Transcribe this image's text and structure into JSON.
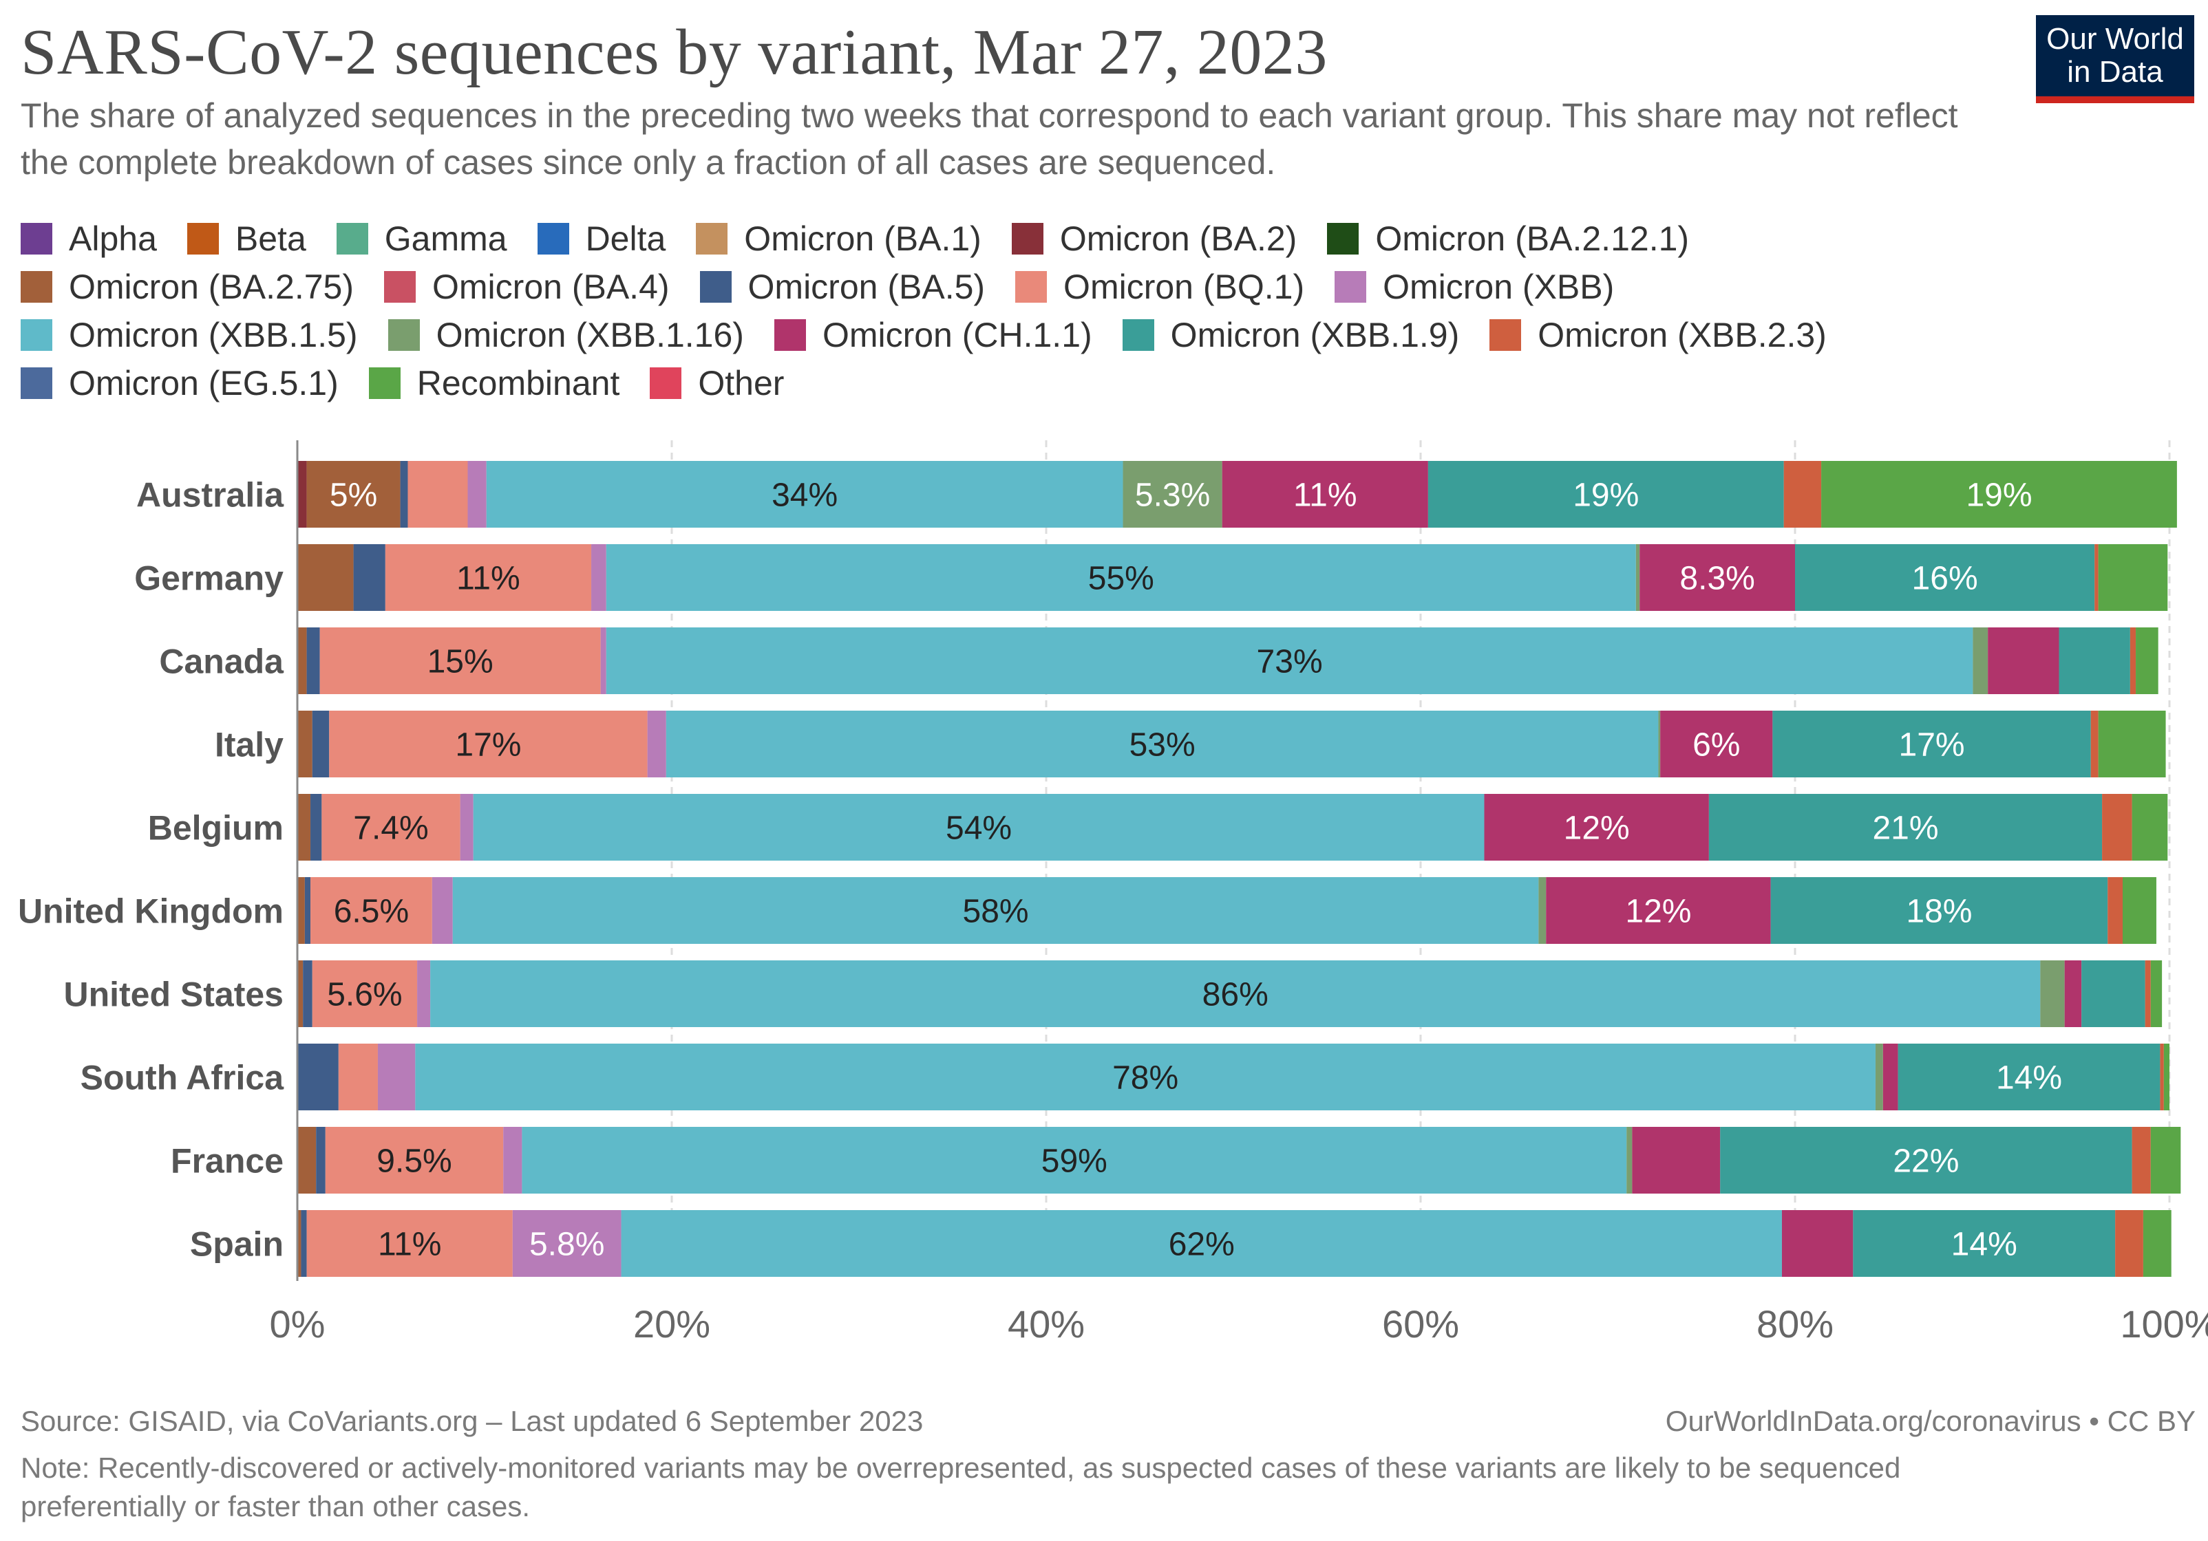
{
  "header": {
    "title": "SARS-CoV-2 sequences by variant, Mar 27, 2023",
    "subtitle": "The share of analyzed sequences in the preceding two weeks that correspond to each variant group. This share may not reflect the complete breakdown of cases since only a fraction of all cases are sequenced.",
    "logo_line1": "Our World",
    "logo_line2": "in Data"
  },
  "colors": {
    "logo_bg": "#002147",
    "logo_accent": "#ce261e"
  },
  "chart_data": {
    "type": "bar",
    "orientation": "horizontal",
    "stacked": true,
    "title": "SARS-CoV-2 sequences by variant, Mar 27, 2023",
    "xlabel": "",
    "ylabel": "",
    "xlim": [
      0,
      100
    ],
    "xticks": [
      0,
      20,
      40,
      60,
      80,
      100
    ],
    "xtick_labels": [
      "0%",
      "20%",
      "40%",
      "60%",
      "80%",
      "100%"
    ],
    "grid": true,
    "legend_position": "top",
    "categories": [
      "Australia",
      "Germany",
      "Canada",
      "Italy",
      "Belgium",
      "United Kingdom",
      "United States",
      "South Africa",
      "France",
      "Spain"
    ],
    "series": [
      {
        "name": "Alpha",
        "color": "#6d3e91",
        "values": [
          0,
          0,
          0,
          0,
          0,
          0,
          0,
          0,
          0,
          0
        ]
      },
      {
        "name": "Beta",
        "color": "#c05917",
        "values": [
          0,
          0,
          0,
          0,
          0,
          0,
          0,
          0,
          0,
          0
        ]
      },
      {
        "name": "Gamma",
        "color": "#58ac8c",
        "values": [
          0,
          0,
          0,
          0,
          0,
          0,
          0,
          0,
          0,
          0
        ]
      },
      {
        "name": "Delta",
        "color": "#286bbb",
        "values": [
          0,
          0,
          0,
          0,
          0,
          0,
          0,
          0,
          0,
          0
        ]
      },
      {
        "name": "Omicron (BA.1)",
        "color": "#c4915f",
        "values": [
          0,
          0,
          0,
          0,
          0,
          0,
          0,
          0,
          0,
          0
        ]
      },
      {
        "name": "Omicron (BA.2)",
        "color": "#883039",
        "values": [
          0.5,
          0,
          0,
          0,
          0,
          0,
          0,
          0,
          0,
          0
        ]
      },
      {
        "name": "Omicron (BA.2.12.1)",
        "color": "#1f4d17",
        "values": [
          0,
          0,
          0,
          0,
          0,
          0,
          0,
          0,
          0,
          0
        ]
      },
      {
        "name": "Omicron (BA.2.75)",
        "color": "#a2603a",
        "values": [
          5,
          3,
          0.5,
          0.8,
          0.7,
          0.4,
          0.3,
          0,
          1,
          0.2
        ]
      },
      {
        "name": "Omicron (BA.4)",
        "color": "#c95163",
        "values": [
          0,
          0,
          0,
          0,
          0,
          0,
          0,
          0,
          0,
          0
        ]
      },
      {
        "name": "Omicron (BA.5)",
        "color": "#3f5d8a",
        "values": [
          0.4,
          1.7,
          0.7,
          0.9,
          0.6,
          0.3,
          0.5,
          2.2,
          0.5,
          0.3
        ]
      },
      {
        "name": "Omicron (BQ.1)",
        "color": "#e9897a",
        "values": [
          3.2,
          11,
          15,
          17,
          7.4,
          6.5,
          5.6,
          2.1,
          9.5,
          11
        ]
      },
      {
        "name": "Omicron (XBB)",
        "color": "#b77cb8",
        "values": [
          1,
          0.8,
          0.3,
          1,
          0.7,
          1.1,
          0.7,
          2,
          1,
          5.8
        ]
      },
      {
        "name": "Omicron (XBB.1.5)",
        "color": "#5fbac9",
        "values": [
          34,
          55,
          73,
          53,
          54,
          58,
          86,
          78,
          59,
          62
        ]
      },
      {
        "name": "Omicron (XBB.1.16)",
        "color": "#7a9e6e",
        "values": [
          5.3,
          0.2,
          0.8,
          0.1,
          0,
          0.4,
          1.3,
          0.4,
          0.3,
          0
        ]
      },
      {
        "name": "Omicron (CH.1.1)",
        "color": "#b0346b",
        "values": [
          11,
          8.3,
          3.8,
          6,
          12,
          12,
          0.9,
          0.8,
          4.7,
          3.8
        ]
      },
      {
        "name": "Omicron (XBB.1.9)",
        "color": "#3a9e98",
        "values": [
          19,
          16,
          3.8,
          17,
          21,
          18,
          3.4,
          14,
          22,
          14
        ]
      },
      {
        "name": "Omicron (XBB.2.3)",
        "color": "#cf5f3f",
        "values": [
          2,
          0.2,
          0.3,
          0.4,
          1.6,
          0.8,
          0.3,
          0.2,
          1,
          1.5
        ]
      },
      {
        "name": "Omicron (EG.5.1)",
        "color": "#4c6a9c",
        "values": [
          0,
          0,
          0,
          0,
          0,
          0,
          0,
          0,
          0,
          0
        ]
      },
      {
        "name": "Recombinant",
        "color": "#5aa647",
        "values": [
          19,
          3.7,
          1.2,
          3.6,
          1.9,
          1.8,
          0.6,
          0.3,
          1.6,
          1.5
        ]
      },
      {
        "name": "Other",
        "color": "#e0445c",
        "values": [
          0,
          0,
          0,
          0,
          0,
          0,
          0,
          0,
          0,
          0
        ]
      }
    ],
    "data_labels": [
      {
        "category": "Australia",
        "series": "Omicron (BA.2.75)",
        "text": "5%"
      },
      {
        "category": "Australia",
        "series": "Omicron (XBB.1.5)",
        "text": "34%"
      },
      {
        "category": "Australia",
        "series": "Omicron (XBB.1.16)",
        "text": "5.3%"
      },
      {
        "category": "Australia",
        "series": "Omicron (CH.1.1)",
        "text": "11%"
      },
      {
        "category": "Australia",
        "series": "Omicron (XBB.1.9)",
        "text": "19%"
      },
      {
        "category": "Australia",
        "series": "Recombinant",
        "text": "19%"
      },
      {
        "category": "Germany",
        "series": "Omicron (BQ.1)",
        "text": "11%"
      },
      {
        "category": "Germany",
        "series": "Omicron (XBB.1.5)",
        "text": "55%"
      },
      {
        "category": "Germany",
        "series": "Omicron (CH.1.1)",
        "text": "8.3%"
      },
      {
        "category": "Germany",
        "series": "Omicron (XBB.1.9)",
        "text": "16%"
      },
      {
        "category": "Canada",
        "series": "Omicron (BQ.1)",
        "text": "15%"
      },
      {
        "category": "Canada",
        "series": "Omicron (XBB.1.5)",
        "text": "73%"
      },
      {
        "category": "Italy",
        "series": "Omicron (BQ.1)",
        "text": "17%"
      },
      {
        "category": "Italy",
        "series": "Omicron (XBB.1.5)",
        "text": "53%"
      },
      {
        "category": "Italy",
        "series": "Omicron (CH.1.1)",
        "text": "6%"
      },
      {
        "category": "Italy",
        "series": "Omicron (XBB.1.9)",
        "text": "17%"
      },
      {
        "category": "Belgium",
        "series": "Omicron (BQ.1)",
        "text": "7.4%"
      },
      {
        "category": "Belgium",
        "series": "Omicron (XBB.1.5)",
        "text": "54%"
      },
      {
        "category": "Belgium",
        "series": "Omicron (CH.1.1)",
        "text": "12%"
      },
      {
        "category": "Belgium",
        "series": "Omicron (XBB.1.9)",
        "text": "21%"
      },
      {
        "category": "United Kingdom",
        "series": "Omicron (BQ.1)",
        "text": "6.5%"
      },
      {
        "category": "United Kingdom",
        "series": "Omicron (XBB.1.5)",
        "text": "58%"
      },
      {
        "category": "United Kingdom",
        "series": "Omicron (CH.1.1)",
        "text": "12%"
      },
      {
        "category": "United Kingdom",
        "series": "Omicron (XBB.1.9)",
        "text": "18%"
      },
      {
        "category": "United States",
        "series": "Omicron (BQ.1)",
        "text": "5.6%"
      },
      {
        "category": "United States",
        "series": "Omicron (XBB.1.5)",
        "text": "86%"
      },
      {
        "category": "South Africa",
        "series": "Omicron (XBB.1.5)",
        "text": "78%"
      },
      {
        "category": "South Africa",
        "series": "Omicron (XBB.1.9)",
        "text": "14%"
      },
      {
        "category": "France",
        "series": "Omicron (BQ.1)",
        "text": "9.5%"
      },
      {
        "category": "France",
        "series": "Omicron (XBB.1.5)",
        "text": "59%"
      },
      {
        "category": "France",
        "series": "Omicron (XBB.1.9)",
        "text": "22%"
      },
      {
        "category": "Spain",
        "series": "Omicron (BQ.1)",
        "text": "11%"
      },
      {
        "category": "Spain",
        "series": "Omicron (XBB)",
        "text": "5.8%"
      },
      {
        "category": "Spain",
        "series": "Omicron (XBB.1.5)",
        "text": "62%"
      },
      {
        "category": "Spain",
        "series": "Omicron (XBB.1.9)",
        "text": "14%"
      }
    ]
  },
  "footer": {
    "source": "Source: GISAID, via CoVariants.org – Last updated 6 September 2023",
    "url": "OurWorldInData.org/coronavirus • CC BY",
    "note": "Note: Recently-discovered or actively-monitored variants may be overrepresented, as suspected cases of these variants are likely to be sequenced preferentially or faster than other cases."
  }
}
